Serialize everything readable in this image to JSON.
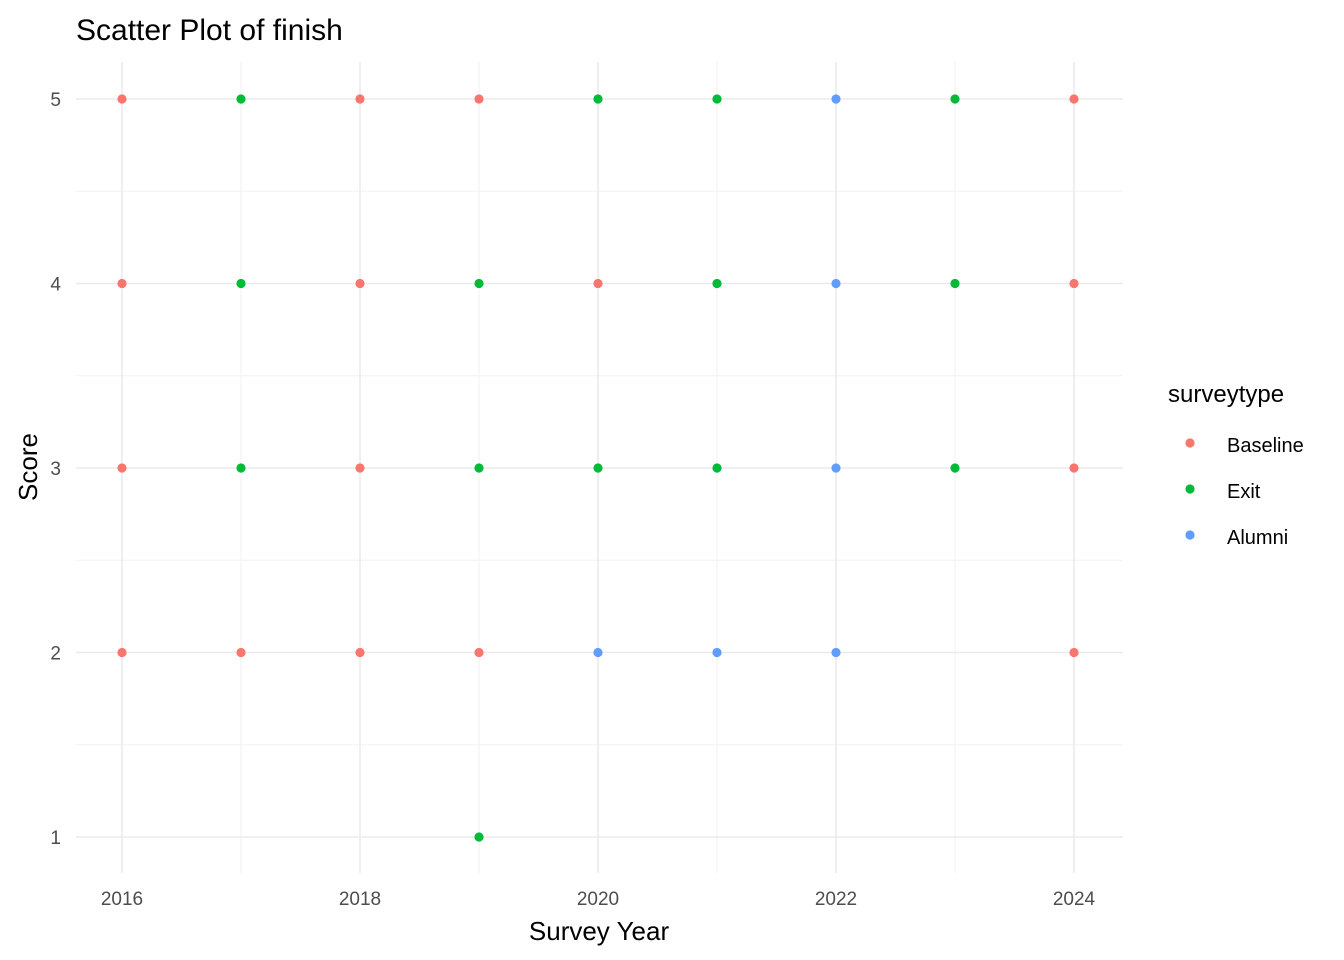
{
  "chart_data": {
    "type": "scatter",
    "title": "Scatter Plot of finish",
    "xlabel": "Survey Year",
    "ylabel": "Score",
    "xlim": [
      2016,
      2024
    ],
    "ylim": [
      1,
      5
    ],
    "x_ticks": [
      2016,
      2018,
      2020,
      2022,
      2024
    ],
    "y_ticks": [
      1,
      2,
      3,
      4,
      5
    ],
    "grid": true,
    "legend": {
      "title": "surveytype",
      "position": "right"
    },
    "series": [
      {
        "name": "Baseline",
        "color": "#F8766D",
        "points": [
          [
            2016,
            5
          ],
          [
            2016,
            4
          ],
          [
            2016,
            3
          ],
          [
            2016,
            2
          ],
          [
            2017,
            2
          ],
          [
            2018,
            5
          ],
          [
            2018,
            4
          ],
          [
            2018,
            3
          ],
          [
            2018,
            2
          ],
          [
            2019,
            5
          ],
          [
            2019,
            2
          ],
          [
            2020,
            4
          ],
          [
            2024,
            5
          ],
          [
            2024,
            4
          ],
          [
            2024,
            3
          ],
          [
            2024,
            2
          ]
        ]
      },
      {
        "name": "Exit",
        "color": "#00BA38",
        "points": [
          [
            2017,
            5
          ],
          [
            2017,
            4
          ],
          [
            2017,
            3
          ],
          [
            2019,
            4
          ],
          [
            2019,
            3
          ],
          [
            2019,
            1
          ],
          [
            2020,
            5
          ],
          [
            2020,
            3
          ],
          [
            2021,
            5
          ],
          [
            2021,
            4
          ],
          [
            2021,
            3
          ],
          [
            2023,
            5
          ],
          [
            2023,
            4
          ],
          [
            2023,
            3
          ]
        ]
      },
      {
        "name": "Alumni",
        "color": "#619CFF",
        "points": [
          [
            2020,
            2
          ],
          [
            2021,
            2
          ],
          [
            2022,
            5
          ],
          [
            2022,
            4
          ],
          [
            2022,
            3
          ],
          [
            2022,
            2
          ]
        ]
      }
    ]
  }
}
